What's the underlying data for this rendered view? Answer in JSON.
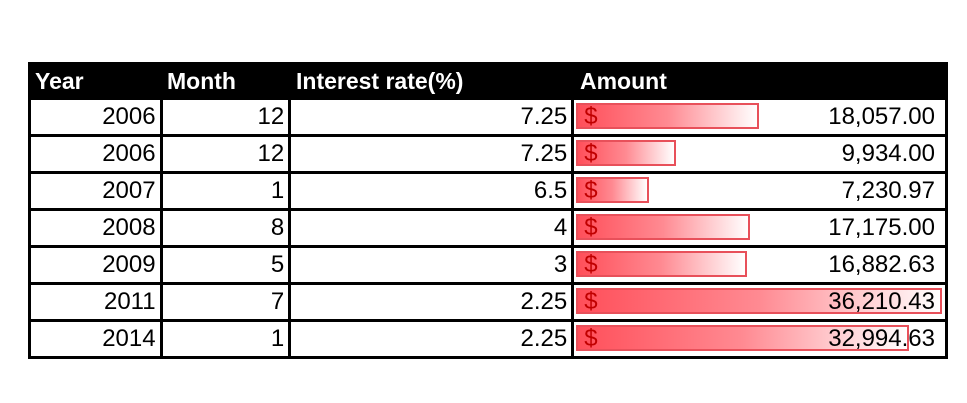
{
  "table": {
    "headers": [
      "Year",
      "Month",
      "Interest rate(%)",
      "Amount"
    ],
    "currency_symbol": "$",
    "bar_color": "#ff4f5a",
    "max_amount": 36210.43,
    "rows": [
      {
        "year": "2006",
        "month": "12",
        "rate": "7.25",
        "amount": "18,057.00",
        "amount_value": 18057.0
      },
      {
        "year": "2006",
        "month": "12",
        "rate": "7.25",
        "amount": "9,934.00",
        "amount_value": 9934.0
      },
      {
        "year": "2007",
        "month": "1",
        "rate": "6.5",
        "amount": "7,230.97",
        "amount_value": 7230.97
      },
      {
        "year": "2008",
        "month": "8",
        "rate": "4",
        "amount": "17,175.00",
        "amount_value": 17175.0
      },
      {
        "year": "2009",
        "month": "5",
        "rate": "3",
        "amount": "16,882.63",
        "amount_value": 16882.63
      },
      {
        "year": "2011",
        "month": "7",
        "rate": "2.25",
        "amount": "36,210.43",
        "amount_value": 36210.43
      },
      {
        "year": "2014",
        "month": "1",
        "rate": "2.25",
        "amount": "32,994.63",
        "amount_value": 32994.63
      }
    ]
  }
}
